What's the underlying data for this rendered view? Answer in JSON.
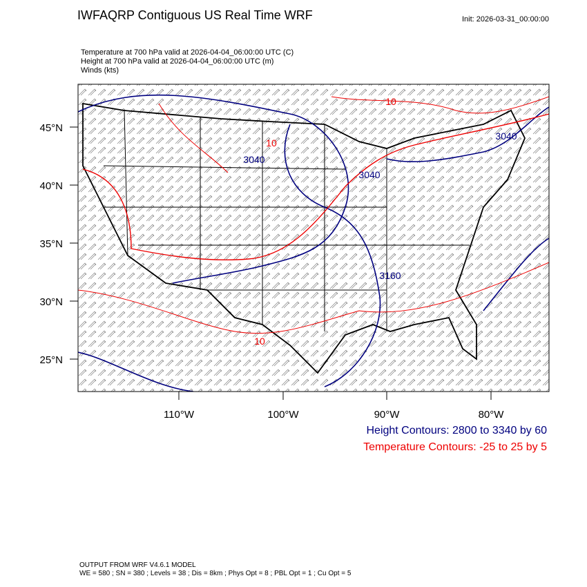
{
  "header": {
    "title": "IWFAQRP Contiguous US Real Time WRF",
    "init": "Init: 2026-03-31_00:00:00"
  },
  "fields": [
    "Temperature at 700 hPa valid at 2026-04-04_06:00:00 UTC   (C)",
    "Height at 700 hPa valid at 2026-04-04_06:00:00 UTC   (m)",
    "Winds   (kts)"
  ],
  "map": {
    "lat_labels": [
      "45°N",
      "40°N",
      "35°N",
      "30°N",
      "25°N"
    ],
    "lon_labels": [
      "110°W",
      "100°W",
      "90°W",
      "80°W"
    ],
    "contour_labels": [
      "10",
      "10",
      "10",
      "3040",
      "3040",
      "3040",
      "3160"
    ]
  },
  "legend": [
    "Height Contours: 2800 to 3340 by 60",
    "Temperature Contours: -25 to 25 by 5"
  ],
  "footer": [
    "OUTPUT FROM WRF V4.6.1 MODEL",
    "WE = 580 ; SN = 380 ; Levels = 38 ; Dis = 8km ; Phys Opt = 8 ; PBL Opt = 1 ; Cu Opt = 5"
  ]
}
